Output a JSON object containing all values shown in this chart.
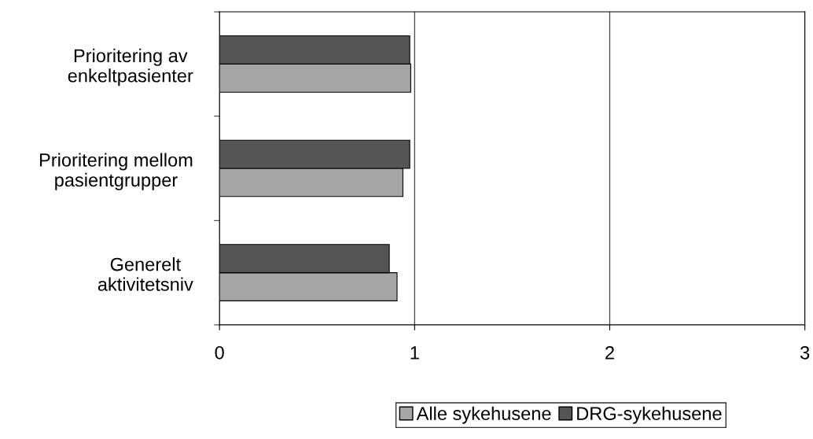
{
  "chart_data": {
    "type": "bar",
    "orientation": "horizontal",
    "categories": [
      "Prioritering av\nenkeltpasienter",
      "Prioritering mellom\npasientgrupper",
      "Generelt\naktivitetsniv"
    ],
    "series": [
      {
        "name": "Alle sykehusene",
        "color": "#a6a6a6",
        "values": [
          0.98,
          0.94,
          0.91
        ]
      },
      {
        "name": "DRG-sykehusene",
        "color": "#555555",
        "values": [
          0.975,
          0.975,
          0.87
        ]
      }
    ],
    "xlim": [
      0,
      3
    ],
    "xticks": [
      0,
      1,
      2,
      3
    ],
    "grid": "x",
    "legend": "bottom"
  }
}
